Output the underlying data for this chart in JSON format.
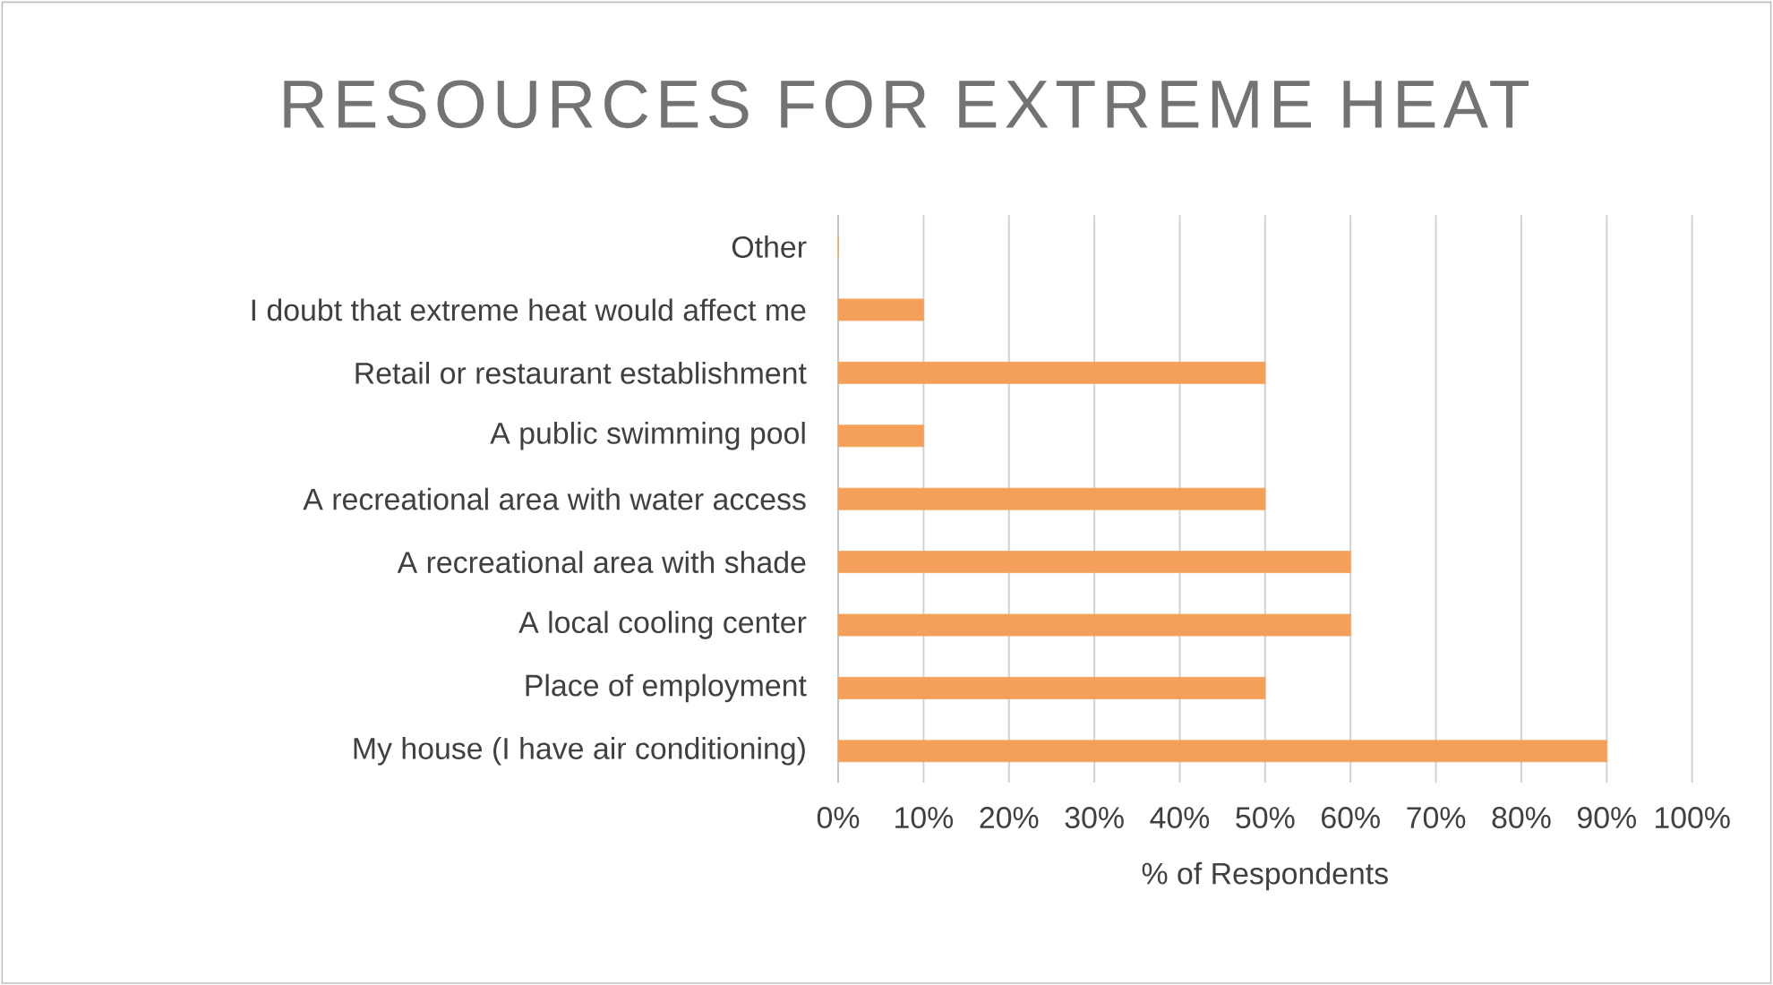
{
  "chart_data": {
    "type": "bar",
    "orientation": "horizontal",
    "title": "RESOURCES FOR EXTREME HEAT",
    "xlabel": "% of Respondents",
    "categories": [
      "Other",
      "I doubt that extreme heat would affect me",
      "Retail or restaurant establishment",
      "A public swimming pool",
      "A recreational area with water access",
      "A recreational area with shade",
      "A local cooling center",
      "Place of employment",
      "My house (I have air conditioning)"
    ],
    "values": [
      0,
      10,
      50,
      10,
      50,
      60,
      60,
      50,
      90
    ],
    "color": "#f5a05a",
    "xlim": [
      0,
      100
    ],
    "xticks": [
      {
        "value": 0,
        "label": "0%"
      },
      {
        "value": 10,
        "label": "10%"
      },
      {
        "value": 20,
        "label": "20%"
      },
      {
        "value": 30,
        "label": "30%"
      },
      {
        "value": 40,
        "label": "40%"
      },
      {
        "value": 50,
        "label": "50%"
      },
      {
        "value": 60,
        "label": "60%"
      },
      {
        "value": 70,
        "label": "70%"
      },
      {
        "value": 80,
        "label": "80%"
      },
      {
        "value": 90,
        "label": "90%"
      },
      {
        "value": 100,
        "label": "100%"
      }
    ],
    "grid": "x"
  }
}
